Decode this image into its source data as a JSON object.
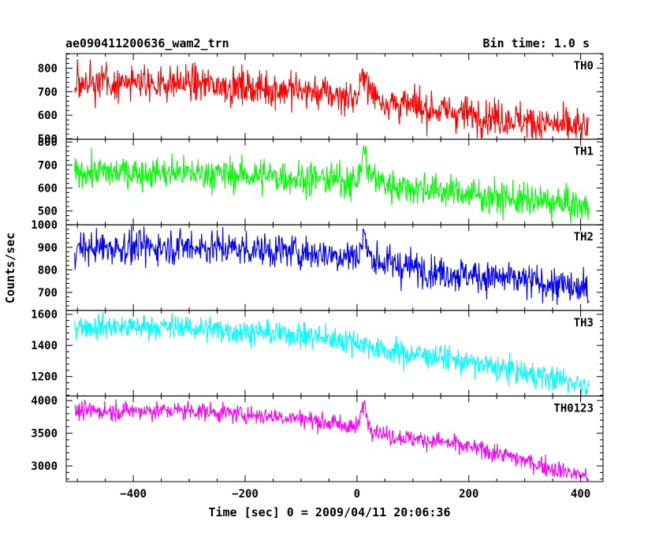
{
  "header": {
    "title": "ae090411200636_wam2_trn",
    "bin_time": "Bin time: 1.0 s"
  },
  "axes": {
    "xlabel": "Time [sec] 0 = 2009/04/11 20:06:36",
    "ylabel": "Counts/sec"
  },
  "chart_data": {
    "type": "line",
    "title": "ae090411200636_wam2_trn",
    "subtitle": "Bin time: 1.0 s",
    "xlabel": "Time [sec] 0 = 2009/04/11 20:06:36",
    "ylabel": "Counts/sec",
    "xlim": [
      -520,
      440
    ],
    "x_ticks": [
      -400,
      -200,
      0,
      200,
      400
    ],
    "x_range_data": [
      -505,
      415
    ],
    "bin_time_s": 1.0,
    "grid": false,
    "panels": [
      {
        "name": "TH0",
        "color": "#ff0000",
        "ylim": [
          498,
          862
        ],
        "y_ticks": [
          500,
          600,
          700,
          800
        ],
        "trend": [
          [
            -505,
            740
          ],
          [
            -300,
            735
          ],
          [
            -100,
            705
          ],
          [
            0,
            675
          ],
          [
            5,
            700
          ],
          [
            12,
            800
          ],
          [
            22,
            700
          ],
          [
            50,
            655
          ],
          [
            150,
            620
          ],
          [
            250,
            590
          ],
          [
            350,
            560
          ],
          [
            415,
            540
          ]
        ],
        "noise_sd": 38
      },
      {
        "name": "TH1",
        "color": "#00ff00",
        "ylim": [
          440,
          812
        ],
        "y_ticks": [
          500,
          600,
          700,
          800
        ],
        "trend": [
          [
            -505,
            670
          ],
          [
            -300,
            665
          ],
          [
            -100,
            645
          ],
          [
            0,
            630
          ],
          [
            5,
            660
          ],
          [
            12,
            770
          ],
          [
            22,
            660
          ],
          [
            50,
            615
          ],
          [
            150,
            590
          ],
          [
            250,
            560
          ],
          [
            350,
            535
          ],
          [
            415,
            515
          ]
        ],
        "noise_sd": 35
      },
      {
        "name": "TH2",
        "color": "#0000ff",
        "ylim": [
          620,
          1000
        ],
        "y_ticks": [
          700,
          800,
          900,
          1000
        ],
        "trend": [
          [
            -505,
            895
          ],
          [
            -300,
            905
          ],
          [
            -100,
            880
          ],
          [
            0,
            860
          ],
          [
            5,
            880
          ],
          [
            12,
            960
          ],
          [
            22,
            860
          ],
          [
            50,
            830
          ],
          [
            150,
            790
          ],
          [
            250,
            765
          ],
          [
            350,
            735
          ],
          [
            415,
            705
          ]
        ],
        "noise_sd": 38
      },
      {
        "name": "TH3",
        "color": "#00ffff",
        "ylim": [
          1075,
          1625
        ],
        "y_ticks": [
          1200,
          1400,
          1600
        ],
        "trend": [
          [
            -505,
            1525
          ],
          [
            -300,
            1515
          ],
          [
            -100,
            1465
          ],
          [
            0,
            1425
          ],
          [
            50,
            1365
          ],
          [
            150,
            1325
          ],
          [
            250,
            1255
          ],
          [
            350,
            1190
          ],
          [
            415,
            1145
          ]
        ],
        "noise_sd": 40
      },
      {
        "name": "TH0123",
        "color": "#ff00ff",
        "ylim": [
          2760,
          4070
        ],
        "y_ticks": [
          3000,
          3500,
          4000
        ],
        "trend": [
          [
            -505,
            3840
          ],
          [
            -300,
            3850
          ],
          [
            -100,
            3730
          ],
          [
            0,
            3590
          ],
          [
            5,
            3700
          ],
          [
            12,
            3980
          ],
          [
            22,
            3620
          ],
          [
            50,
            3470
          ],
          [
            150,
            3370
          ],
          [
            250,
            3200
          ],
          [
            350,
            2960
          ],
          [
            415,
            2840
          ]
        ],
        "noise_sd": 70
      }
    ]
  }
}
